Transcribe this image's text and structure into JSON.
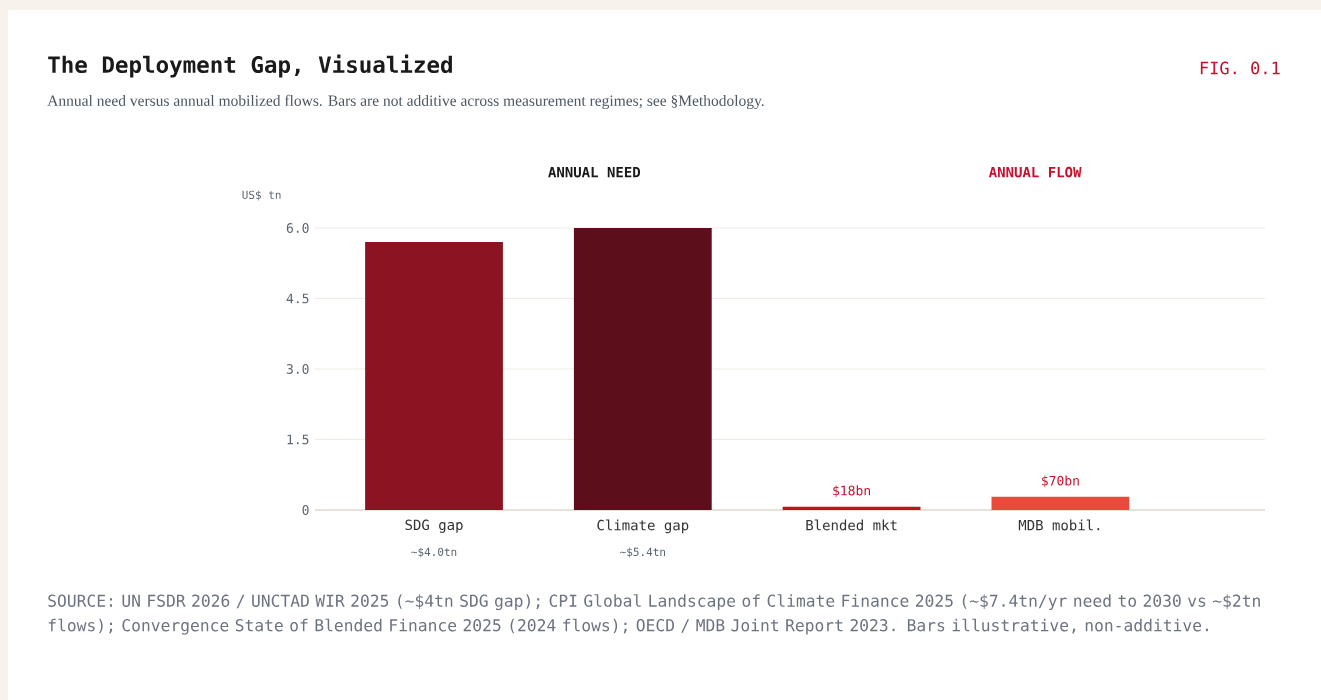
{
  "chart_data": {
    "type": "bar",
    "title": "The Deployment Gap, Visualized",
    "subtitle": "Annual need versus annual mobilized flows. Bars are not additive across measurement regimes; see §Methodology.",
    "ylabel": "US$ tn",
    "categories": [
      "SDG gap",
      "Climate gap",
      "Blended mkt",
      "MDB mobil."
    ],
    "values": [
      5.7,
      6.0,
      0.07,
      0.28
    ],
    "colors": [
      "#8c1322",
      "#5c0f1a",
      "#c0111f",
      "#e84b3c"
    ],
    "ylim": [
      0,
      6
    ],
    "yticks": [
      0,
      1.5,
      {
        "value": 3,
        "label": "3.0"
      },
      4.5,
      {
        "value": 6,
        "label": "6.0"
      }
    ],
    "grid": "y",
    "annotations": [
      {
        "text": "$18bn",
        "x": "Blended mkt",
        "y": 0.07
      },
      {
        "text": "$70bn",
        "x": "MDB mobil.",
        "y": 0.28
      },
      "FIG. 0.1",
      "ANNUAL NEED",
      "ANNUAL FLOW",
      "~$4.0tn",
      "~$5.4tn",
      "SOURCE: UN FSDR 2026 / UNCTAD WIR 2025 (~$4tn SDG gap); CPI Global Landscape of Climate Finance 2025 (~$7.4tn/yr need to 2030 vs ~$2tn flows); Convergence State of Blended Finance 2025 (2024 flows); OECD / MDB Joint Report 2023. Bars illustrative, non-additive."
    ]
  }
}
